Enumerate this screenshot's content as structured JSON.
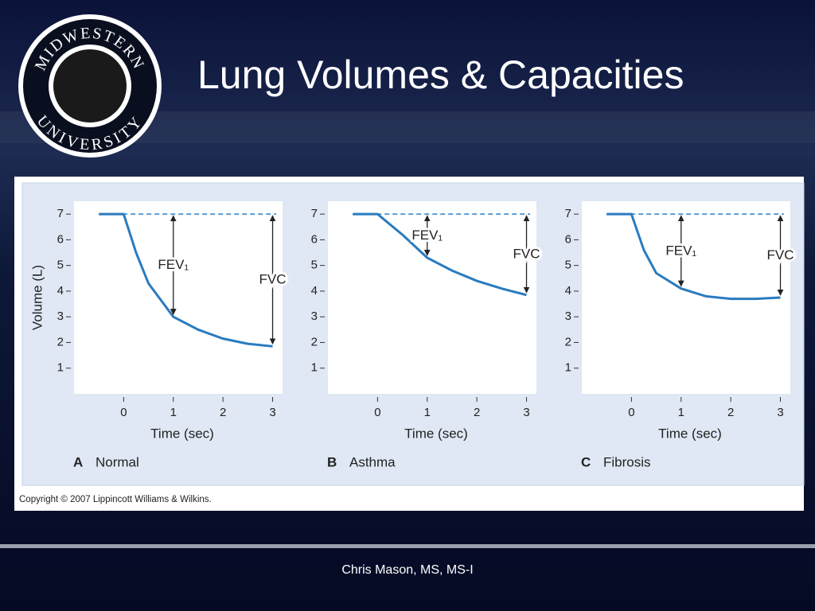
{
  "slide": {
    "title": "Lung Volumes & Capacities",
    "logo_top": "MIDWESTERN",
    "logo_bottom": "UNIVERSITY",
    "copyright": "Copyright © 2007 Lippincott Williams & Wilkins.",
    "footer": "Chris Mason, MS, MS-I"
  },
  "chart_data": [
    {
      "type": "line",
      "panel": "A",
      "title": "Normal",
      "xlabel": "Time (sec)",
      "ylabel": "Volume (L)",
      "x": [
        -0.5,
        0,
        0.25,
        0.5,
        1,
        1.5,
        2,
        2.5,
        3
      ],
      "series": [
        {
          "name": "Normal",
          "color": "#2a7bbf",
          "values": [
            7,
            7,
            5.5,
            4.3,
            3.0,
            2.5,
            2.15,
            1.95,
            1.85
          ]
        }
      ],
      "reference_line": 7,
      "reference_color": "#5a9bd0",
      "annotations": [
        {
          "text": "FEV₁",
          "x": 1
        },
        {
          "text": "FVC",
          "x": 3
        }
      ],
      "xlim": [
        -1,
        3.2
      ],
      "ylim": [
        0,
        7.5
      ],
      "xticks": [
        0,
        1,
        2,
        3
      ],
      "yticks": [
        1,
        2,
        3,
        4,
        5,
        6,
        7
      ],
      "grid": false
    },
    {
      "type": "line",
      "panel": "B",
      "title": "Asthma",
      "xlabel": "Time (sec)",
      "x": [
        -0.5,
        0,
        0.25,
        0.5,
        1,
        1.5,
        2,
        2.5,
        3
      ],
      "series": [
        {
          "name": "Asthma",
          "color": "#2a7bbf",
          "values": [
            7,
            7,
            6.6,
            6.2,
            5.3,
            4.8,
            4.4,
            4.1,
            3.85
          ]
        }
      ],
      "reference_line": 7,
      "reference_color": "#5a9bd0",
      "annotations": [
        {
          "text": "FEV₁",
          "x": 1
        },
        {
          "text": "FVC",
          "x": 3
        }
      ],
      "xlim": [
        -1,
        3.2
      ],
      "ylim": [
        0,
        7.5
      ],
      "xticks": [
        0,
        1,
        2,
        3
      ],
      "yticks": [
        1,
        2,
        3,
        4,
        5,
        6,
        7
      ],
      "grid": false
    },
    {
      "type": "line",
      "panel": "C",
      "title": "Fibrosis",
      "xlabel": "Time (sec)",
      "x": [
        -0.5,
        0,
        0.25,
        0.5,
        1,
        1.5,
        2,
        2.5,
        3
      ],
      "series": [
        {
          "name": "Fibrosis",
          "color": "#2a7bbf",
          "values": [
            7,
            7,
            5.6,
            4.7,
            4.1,
            3.8,
            3.7,
            3.7,
            3.75
          ]
        }
      ],
      "reference_line": 7,
      "reference_color": "#5a9bd0",
      "annotations": [
        {
          "text": "FEV₁",
          "x": 1
        },
        {
          "text": "FVC",
          "x": 3
        }
      ],
      "xlim": [
        -1,
        3.2
      ],
      "ylim": [
        0,
        7.5
      ],
      "xticks": [
        0,
        1,
        2,
        3
      ],
      "yticks": [
        1,
        2,
        3,
        4,
        5,
        6,
        7
      ],
      "grid": false
    }
  ]
}
